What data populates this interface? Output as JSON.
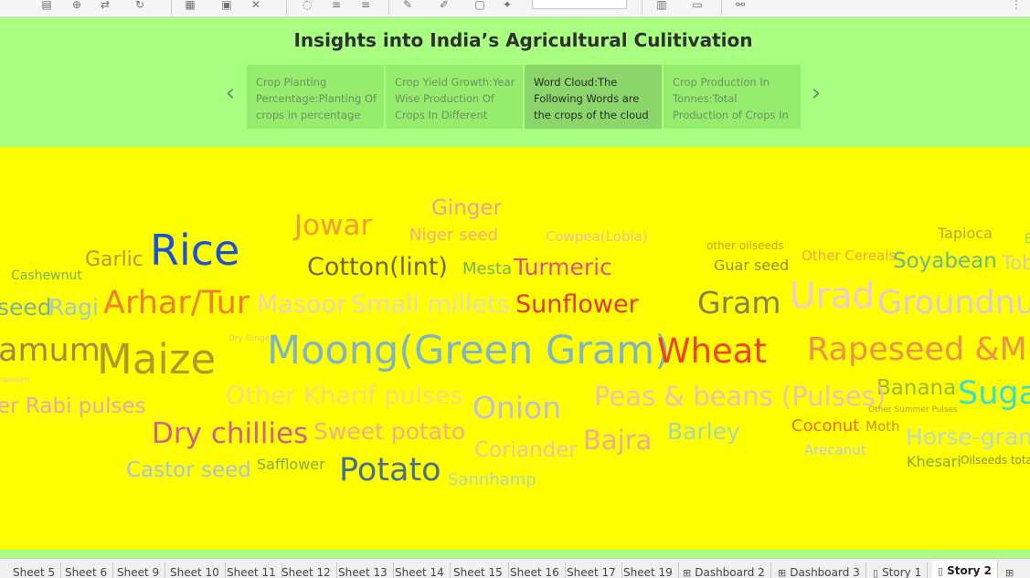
{
  "toolbar": {
    "icons": [
      "save-icon",
      "add-data-source-icon",
      "swap-icon",
      "redo-icon",
      "new-sheet-icon",
      "clear-sheet-icon",
      "pause-icon",
      "sort-ascending-icon",
      "sort-descending-icon",
      "highlight-icon",
      "annotate-icon",
      "fit-icon",
      "pin-icon",
      "show-cards-icon",
      "present-icon",
      "share-icon"
    ]
  },
  "story": {
    "title": "Insights into India’s Agricultural Culitivation",
    "points": [
      {
        "label": "Crop Planting Percentage:Planting Of crops in percentage",
        "active": false
      },
      {
        "label": "Crop Yield Growth:Year Wise Production Of Crops In Different",
        "active": false
      },
      {
        "label": "Word Cloud:The Following Words are the crops of the cloud",
        "active": true
      },
      {
        "label": "Crop Production In Tonnes:Total Production of Crops In",
        "active": false
      }
    ],
    "prev_arrow": "‹",
    "next_arrow": "›"
  },
  "cloud": {
    "words": [
      {
        "text": "Ginger",
        "color": "#e8a0a8"
      },
      {
        "text": "Jowar",
        "color": "#f59a3a"
      },
      {
        "text": "Niger seed",
        "color": "#f5a78e"
      },
      {
        "text": "Cowpea(Lobia)",
        "color": "#e4c0a4"
      },
      {
        "text": "Tapioca",
        "color": "#b8a43a"
      },
      {
        "text": "B",
        "color": "#9acf6a"
      },
      {
        "text": "Rice",
        "color": "#1b50d8"
      },
      {
        "text": "Garlic",
        "color": "#b8923c"
      },
      {
        "text": "other oilseeds",
        "color": "#c89a2c"
      },
      {
        "text": "Other Cereals",
        "color": "#f0a24a"
      },
      {
        "text": "Cotton(lint)",
        "color": "#6e6838"
      },
      {
        "text": "Mesta",
        "color": "#74b25e"
      },
      {
        "text": "Turmeric",
        "color": "#e04e8e"
      },
      {
        "text": "Guar seed",
        "color": "#8d8e3c"
      },
      {
        "text": "Soyabean",
        "color": "#68b888"
      },
      {
        "text": "Tob",
        "color": "#d8cc9c"
      },
      {
        "text": "Cashewnut",
        "color": "#72b06a"
      },
      {
        "text": "seed",
        "color": "#78b0a0"
      },
      {
        "text": "Ragi",
        "color": "#a0c8d0"
      },
      {
        "text": "Arhar/Tur",
        "color": "#f07e30"
      },
      {
        "text": "Masoor",
        "color": "#e8d4b8"
      },
      {
        "text": "Small millets",
        "color": "#e4dcb4"
      },
      {
        "text": "Sunflower",
        "color": "#e4362c"
      },
      {
        "text": "Gram",
        "color": "#848050"
      },
      {
        "text": "Urad",
        "color": "#eaccd4"
      },
      {
        "text": "Groundnu",
        "color": "#dcccd0"
      },
      {
        "text": "amum",
        "color": "#a08a48"
      },
      {
        "text": "Maize",
        "color": "#b0982c"
      },
      {
        "text": "Dry Ginger",
        "color": "#d4c890"
      },
      {
        "text": "Moong(Green Gram)",
        "color": "#7eb4c4"
      },
      {
        "text": "Wheat",
        "color": "#f0401c"
      },
      {
        "text": "Rapeseed &Mu",
        "color": "#f0904c"
      },
      {
        "text": "namom",
        "color": "#ecc4b4"
      },
      {
        "text": "Banana",
        "color": "#9ab83c"
      },
      {
        "text": "Suga",
        "color": "#38dcd0"
      },
      {
        "text": "er Rabi pulses",
        "color": "#eaa4b4"
      },
      {
        "text": "Other Kharif pulses",
        "color": "#f4dc7c"
      },
      {
        "text": "Onion",
        "color": "#bcc0d4"
      },
      {
        "text": "Peas & beans (Pulses)",
        "color": "#ecc0b4"
      },
      {
        "text": "Other Summer Pulses",
        "color": "#a89c50"
      },
      {
        "text": "Dry chillies",
        "color": "#d45e8c"
      },
      {
        "text": "Sweet potato",
        "color": "#f4ac8c"
      },
      {
        "text": "Coriander",
        "color": "#eac4a8"
      },
      {
        "text": "Bajra",
        "color": "#f0ac90"
      },
      {
        "text": "Barley",
        "color": "#a8d4b0"
      },
      {
        "text": "Coconut",
        "color": "#ec6828"
      },
      {
        "text": "Moth",
        "color": "#d48c2c"
      },
      {
        "text": "Horse-gram",
        "color": "#bcd8c8"
      },
      {
        "text": "Arecanut",
        "color": "#b4cce4"
      },
      {
        "text": "Castor seed",
        "color": "#a8c4d0"
      },
      {
        "text": "Safflower",
        "color": "#84a858"
      },
      {
        "text": "Potato",
        "color": "#46708c"
      },
      {
        "text": "Sannhamp",
        "color": "#b4d4b4"
      },
      {
        "text": "Khesari",
        "color": "#7ca848"
      },
      {
        "text": "Oilseeds total",
        "color": "#8a8c48"
      }
    ]
  },
  "tabs": [
    {
      "label": "Sheet 5",
      "icon": ""
    },
    {
      "label": "Sheet 6",
      "icon": ""
    },
    {
      "label": "Sheet 9",
      "icon": ""
    },
    {
      "label": "Sheet 10",
      "icon": ""
    },
    {
      "label": "Sheet 11",
      "icon": ""
    },
    {
      "label": "Sheet 12",
      "icon": ""
    },
    {
      "label": "Sheet 13",
      "icon": ""
    },
    {
      "label": "Sheet 14",
      "icon": ""
    },
    {
      "label": "Sheet 15",
      "icon": ""
    },
    {
      "label": "Sheet 16",
      "icon": ""
    },
    {
      "label": "Sheet 17",
      "icon": ""
    },
    {
      "label": "Sheet 19",
      "icon": ""
    },
    {
      "label": "Dashboard 2",
      "icon": "dashboard-icon"
    },
    {
      "label": "Dashboard 3",
      "icon": "dashboard-icon"
    },
    {
      "label": "Story 1",
      "icon": "story-icon"
    },
    {
      "label": "Story 2",
      "icon": "story-icon"
    }
  ]
}
